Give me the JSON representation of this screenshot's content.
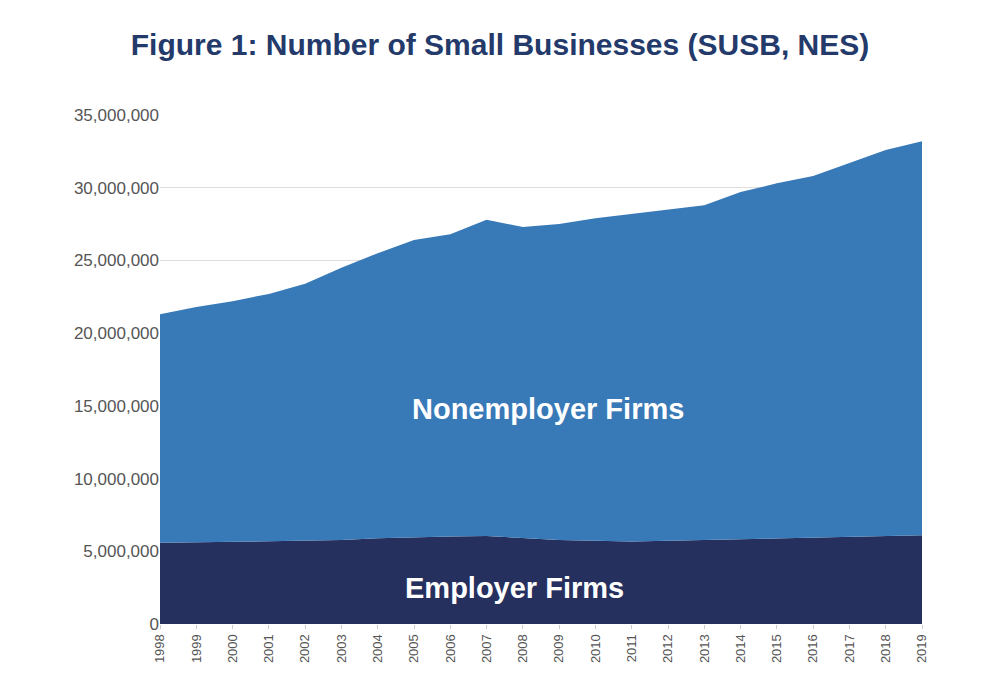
{
  "chart_data": {
    "type": "area",
    "title": "Figure 1: Number of Small Businesses (SUSB, NES)",
    "stacked": true,
    "grid": true,
    "categories": [
      "1998",
      "1999",
      "2000",
      "2001",
      "2002",
      "2003",
      "2004",
      "2005",
      "2006",
      "2007",
      "2008",
      "2009",
      "2010",
      "2011",
      "2012",
      "2013",
      "2014",
      "2015",
      "2016",
      "2017",
      "2018",
      "2019"
    ],
    "series": [
      {
        "name": "Employer Firms",
        "color": "#25305e",
        "values": [
          5580000,
          5610000,
          5650000,
          5660000,
          5700000,
          5770000,
          5890000,
          5980000,
          6020000,
          6050000,
          5930000,
          5770000,
          5730000,
          5680000,
          5730000,
          5780000,
          5830000,
          5900000,
          5950000,
          6000000,
          6080000,
          6100000
        ]
      },
      {
        "name": "Nonemployer Firms",
        "color": "#3879b8",
        "values": [
          15720000,
          16190000,
          16550000,
          17040000,
          17700000,
          18730000,
          19610000,
          20420000,
          20780000,
          21750000,
          21370000,
          21730000,
          22170000,
          22520000,
          22770000,
          23020000,
          23870000,
          24400000,
          24850000,
          25700000,
          26520000,
          27100000
        ]
      }
    ],
    "ylim": [
      0,
      35000000
    ],
    "yticks": [
      0,
      {
        "value": 5000000,
        "label": "5,000,000"
      },
      {
        "value": 10000000,
        "label": "10,000,000"
      },
      {
        "value": 15000000,
        "label": "15,000,000"
      },
      {
        "value": 20000000,
        "label": "20,000,000"
      },
      {
        "value": 25000000,
        "label": "25,000,000"
      },
      {
        "value": 30000000,
        "label": "30,000,000"
      },
      {
        "value": 35000000,
        "label": "35,000,000"
      }
    ]
  }
}
